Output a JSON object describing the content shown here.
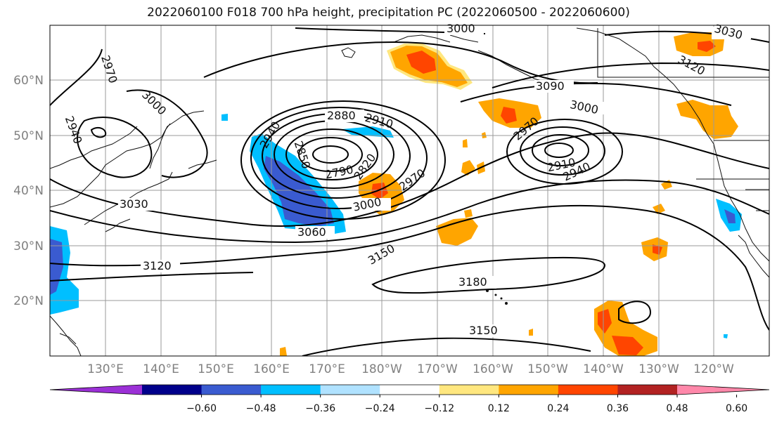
{
  "title": "2022060100 F018 700 hPa height, precipitation PC (2022060500 - 2022060600)",
  "lat_labels": [
    "60°N",
    "50°N",
    "40°N",
    "30°N",
    "20°N"
  ],
  "lon_labels": [
    "130°E",
    "140°E",
    "150°E",
    "160°E",
    "170°E",
    "180°W",
    "170°W",
    "160°W",
    "150°W",
    "140°W",
    "130°W",
    "120°W"
  ],
  "contour_labels": [
    "3000",
    "3030",
    "2970",
    "3000",
    "2940",
    "3090",
    "3000",
    "3120",
    "2940",
    "2880",
    "2910",
    "2970",
    "2850",
    "2790",
    "2820",
    "2970",
    "3000",
    "2910",
    "2940",
    "3030",
    "3060",
    "3150",
    "3120",
    "3180",
    "3150"
  ],
  "colorbar": {
    "ticks": [
      "−0.60",
      "−0.48",
      "−0.36",
      "−0.24",
      "−0.12",
      "0.12",
      "0.24",
      "0.36",
      "0.48",
      "0.60"
    ],
    "colors": [
      "#9b30d6",
      "#00008b",
      "#3a5bd0",
      "#00bfff",
      "#b0e2ff",
      "#ffffff",
      "#ffe77f",
      "#ffa500",
      "#ff4500",
      "#b22222",
      "#ff88aa"
    ]
  },
  "colors": {
    "orange": "#ffa500",
    "red": "#ff4500",
    "light_yellow": "#ffe77f",
    "dark_red": "#b22222",
    "sky": "#00bfff",
    "blue": "#3a5bd0",
    "navy": "#00008b"
  }
}
